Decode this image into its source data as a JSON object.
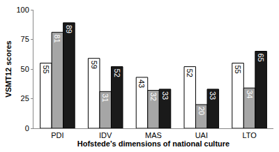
{
  "chart_data": {
    "type": "bar",
    "x_label": "Hofstede’s dimensions of national culture",
    "y_label": "VSMT12 scores",
    "categories": [
      "PDI",
      "IDV",
      "MAS",
      "UAI",
      "LTO"
    ],
    "series": [
      {
        "color": "#ffffff",
        "values": [
          55,
          59,
          43,
          52,
          55
        ]
      },
      {
        "color": "#a6a6a6",
        "values": [
          81,
          31,
          32,
          20,
          34
        ]
      },
      {
        "color": "#1a1a1a",
        "values": [
          89,
          52,
          33,
          33,
          65
        ]
      }
    ],
    "ylim": [
      0,
      100
    ],
    "yticks": [
      0,
      25,
      50,
      75,
      100
    ],
    "grid": false,
    "data_labels": true
  }
}
